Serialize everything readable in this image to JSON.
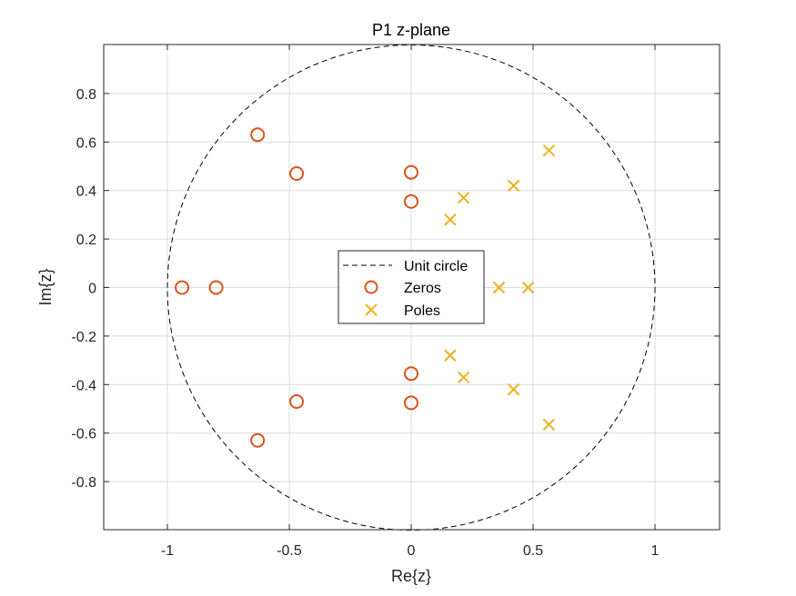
{
  "chart_data": {
    "type": "scatter",
    "title": "P1 z-plane",
    "xlabel": "Re{z}",
    "ylabel": "Im{z}",
    "xlim": [
      -1.27,
      1.27
    ],
    "ylim": [
      -1,
      1
    ],
    "xticks": [
      -1,
      -0.5,
      0,
      0.5,
      1
    ],
    "xtick_labels": [
      "-1",
      "-0.5",
      "0",
      "0.5",
      "1"
    ],
    "yticks": [
      -0.8,
      -0.6,
      -0.4,
      -0.2,
      0,
      0.2,
      0.4,
      0.6,
      0.8
    ],
    "ytick_labels": [
      "-0.8",
      "-0.6",
      "-0.4",
      "-0.2",
      "0",
      "0.2",
      "0.4",
      "0.6",
      "0.8"
    ],
    "grid": true,
    "legend_position": "center",
    "unit_circle": {
      "name": "Unit circle",
      "color": "#000000",
      "style": "dashed"
    },
    "series": [
      {
        "name": "Zeros",
        "marker": "circle",
        "color": "#D95319",
        "points": [
          [
            -0.94,
            0
          ],
          [
            -0.8,
            0
          ],
          [
            -0.63,
            0.63
          ],
          [
            -0.63,
            -0.63
          ],
          [
            -0.47,
            0.47
          ],
          [
            -0.47,
            -0.47
          ],
          [
            0,
            0.475
          ],
          [
            0,
            -0.475
          ],
          [
            0,
            0.355
          ],
          [
            0,
            -0.355
          ]
        ]
      },
      {
        "name": "Poles",
        "marker": "x",
        "color": "#EDB120",
        "points": [
          [
            0.565,
            0.565
          ],
          [
            0.565,
            -0.565
          ],
          [
            0.42,
            0.42
          ],
          [
            0.42,
            -0.42
          ],
          [
            0.215,
            0.37
          ],
          [
            0.215,
            -0.37
          ],
          [
            0.16,
            0.28
          ],
          [
            0.16,
            -0.28
          ],
          [
            0.36,
            0
          ],
          [
            0.48,
            0
          ]
        ]
      }
    ]
  }
}
